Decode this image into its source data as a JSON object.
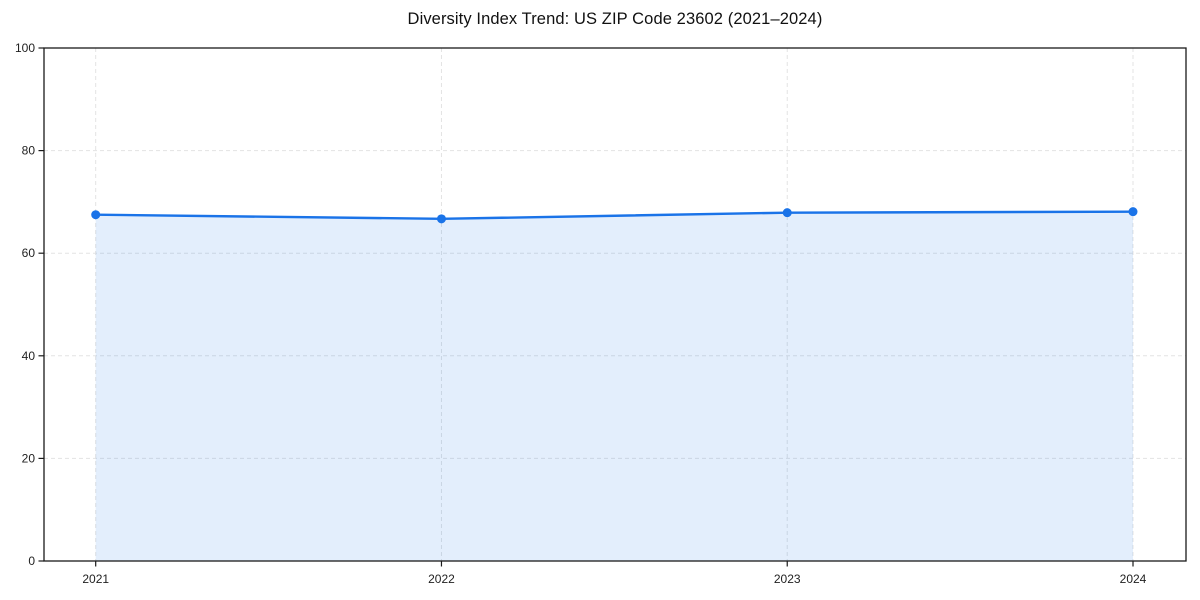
{
  "page": {
    "background": "#ffffff"
  },
  "chart_data": {
    "type": "area",
    "title": "Diversity Index Trend: US ZIP Code 23602 (2021–2024)",
    "series_name": "Diversity Index",
    "x": [
      2021,
      2022,
      2023,
      2024
    ],
    "values": [
      67.5,
      66.7,
      67.9,
      68.1
    ],
    "xticks": [
      "2021",
      "2022",
      "2023",
      "2024"
    ],
    "yticks": [
      0,
      20,
      40,
      60,
      80,
      100
    ],
    "ylim": [
      0,
      100
    ],
    "xlabel": "",
    "ylabel": "",
    "grid": "dashed",
    "legend": "none",
    "colors": {
      "line": "#1a73e8",
      "fill": "rgba(26,115,232,0.12)",
      "grid": "#e3e3e3",
      "spine": "#1a1a1a",
      "tick_text": "#1f1f1f",
      "title_text": "#111111"
    }
  }
}
